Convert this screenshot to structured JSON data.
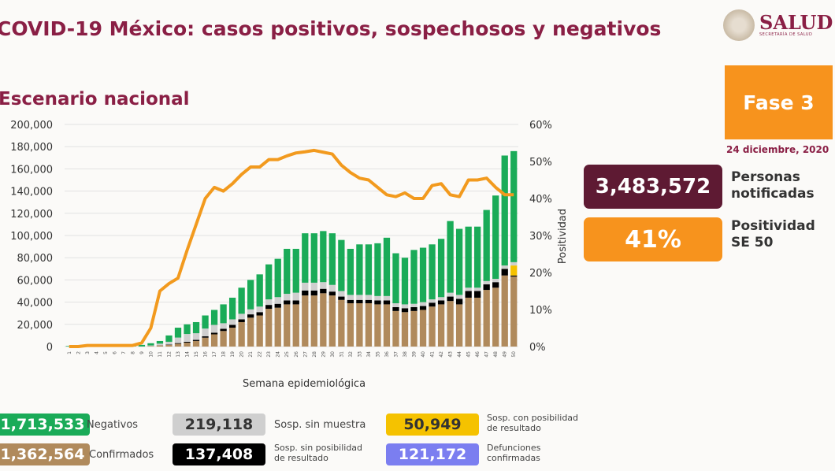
{
  "header": {
    "title": "COVID-19 México: casos positivos, sospechosos y negativos",
    "subtitle": "Escenario nacional"
  },
  "logo": {
    "brand": "SALUD",
    "brand_sub": "SECRETARÍA DE SALUD"
  },
  "phase": {
    "label": "Fase 3",
    "color": "#f7931d"
  },
  "date": "24 diciembre, 2020",
  "kpis": [
    {
      "value": "3,483,572",
      "label_line1": "Personas",
      "label_line2": "notificadas",
      "color": "#5e1a33"
    },
    {
      "value": "41%",
      "label_line1": "Positividad",
      "label_line2": "SE 50",
      "color": "#f7931d"
    }
  ],
  "legend": [
    {
      "value": "1,713,533",
      "label": "Negativos",
      "label2": "",
      "color": "#1aab58",
      "text_color": "#ffffff"
    },
    {
      "value": "219,118",
      "label": "Sosp. sin muestra",
      "label2": "",
      "color": "#cfcfcf",
      "text_color": "#333333"
    },
    {
      "value": "50,949",
      "label": "Sosp. con posibilidad",
      "label2": "de resultado",
      "color": "#f5c200",
      "text_color": "#333333"
    },
    {
      "value": "1,362,564",
      "label": "Confirmados",
      "label2": "",
      "color": "#b08a5c",
      "text_color": "#ffffff"
    },
    {
      "value": "137,408",
      "label": "Sosp. sin posibilidad",
      "label2": "de resultado",
      "color": "#000000",
      "text_color": "#ffffff"
    },
    {
      "value": "121,172",
      "label": "Defunciones",
      "label2": "confirmadas",
      "color": "#7b7ef0",
      "text_color": "#ffffff"
    }
  ],
  "chart_data": {
    "type": "bar",
    "stacked": true,
    "xlabel": "Semana epidemiológica",
    "ylabel_right": "Positividad",
    "ylim": [
      0,
      200000
    ],
    "y2lim": [
      0,
      60
    ],
    "yticks": [
      "0",
      "20,000",
      "40,000",
      "60,000",
      "80,000",
      "100,000",
      "120,000",
      "140,000",
      "160,000",
      "180,000",
      "200,000"
    ],
    "y2ticks": [
      "0%",
      "10%",
      "20%",
      "30%",
      "40%",
      "50%",
      "60%"
    ],
    "grid": true,
    "categories": [
      1,
      2,
      3,
      4,
      5,
      6,
      7,
      8,
      9,
      10,
      11,
      12,
      13,
      14,
      15,
      16,
      17,
      18,
      19,
      20,
      21,
      22,
      23,
      24,
      25,
      26,
      27,
      28,
      29,
      30,
      31,
      32,
      33,
      34,
      35,
      36,
      37,
      38,
      39,
      40,
      41,
      42,
      43,
      44,
      45,
      46,
      47,
      48,
      49,
      50
    ],
    "series": [
      {
        "name": "Confirmados",
        "color": "#b08a5c",
        "values": [
          0,
          0,
          0,
          0,
          0,
          0,
          0,
          0,
          100,
          500,
          1000,
          1500,
          2500,
          3500,
          5000,
          8000,
          11000,
          14000,
          17000,
          22000,
          26000,
          28000,
          34000,
          35000,
          38000,
          38000,
          46000,
          46000,
          48000,
          46000,
          42000,
          39000,
          39000,
          39000,
          38000,
          38000,
          32000,
          31000,
          32000,
          33000,
          36000,
          38000,
          41000,
          38000,
          44000,
          44000,
          51000,
          53000,
          64000,
          63000
        ]
      },
      {
        "name": "Sosp. sin posibilidad de resultado",
        "color": "#000000",
        "values": [
          0,
          0,
          0,
          0,
          0,
          0,
          0,
          0,
          0,
          0,
          100,
          300,
          600,
          800,
          1000,
          1200,
          1500,
          2000,
          2500,
          2500,
          3000,
          3000,
          3500,
          3500,
          3500,
          3500,
          4500,
          4500,
          4000,
          3500,
          3000,
          3000,
          3000,
          3000,
          3500,
          3500,
          3500,
          3500,
          3500,
          3500,
          3500,
          3500,
          4000,
          5000,
          6000,
          6000,
          5000,
          5000,
          6000,
          1000
        ]
      },
      {
        "name": "Sosp. con posibilidad de resultado",
        "color": "#f5c200",
        "values": [
          0,
          0,
          0,
          0,
          0,
          0,
          0,
          0,
          0,
          0,
          0,
          0,
          0,
          0,
          0,
          0,
          0,
          0,
          0,
          0,
          0,
          0,
          0,
          0,
          0,
          0,
          0,
          0,
          0,
          0,
          0,
          0,
          0,
          0,
          0,
          0,
          0,
          0,
          0,
          0,
          0,
          0,
          0,
          0,
          0,
          0,
          0,
          0,
          0,
          9000
        ]
      },
      {
        "name": "Sosp. sin muestra",
        "color": "#cfcfcf",
        "values": [
          0,
          0,
          0,
          0,
          0,
          0,
          0,
          0,
          0,
          500,
          1500,
          2500,
          5000,
          7000,
          6000,
          7000,
          7000,
          5000,
          5000,
          5000,
          4500,
          5000,
          5000,
          6000,
          6000,
          7000,
          7000,
          7000,
          6000,
          6000,
          5000,
          4500,
          4500,
          4500,
          4000,
          4000,
          3500,
          3500,
          3000,
          3500,
          3000,
          3000,
          3500,
          3500,
          3000,
          3000,
          3000,
          3000,
          3000,
          3000
        ]
      },
      {
        "name": "Negativos",
        "color": "#1aab58",
        "values": [
          500,
          1000,
          1500,
          2000,
          1500,
          1500,
          1000,
          1000,
          1400,
          2000,
          2400,
          5700,
          8900,
          8700,
          10000,
          11800,
          13500,
          17000,
          19500,
          23500,
          26500,
          29000,
          31500,
          34500,
          40500,
          39500,
          44500,
          44500,
          46000,
          46500,
          46000,
          41500,
          45500,
          45500,
          47500,
          52500,
          45000,
          42000,
          48500,
          49000,
          49500,
          52500,
          64500,
          59500,
          55000,
          55000,
          64000,
          75000,
          99000,
          100000
        ]
      }
    ],
    "line": {
      "name": "Positividad",
      "color": "#f29a1e",
      "axis": "right",
      "values": [
        0,
        0,
        0.3,
        0.3,
        0.3,
        0.3,
        0.3,
        0.3,
        1,
        5,
        15,
        17,
        18.5,
        26,
        33,
        40,
        43,
        42,
        44,
        46.5,
        48.5,
        48.5,
        50.5,
        50.5,
        51.5,
        52.3,
        52.6,
        53,
        52.5,
        52,
        49,
        47,
        45.5,
        45,
        43,
        41,
        40.5,
        41.5,
        40,
        40,
        43.5,
        44,
        41,
        40.5,
        45,
        45,
        45.5,
        43,
        41,
        41
      ]
    }
  }
}
